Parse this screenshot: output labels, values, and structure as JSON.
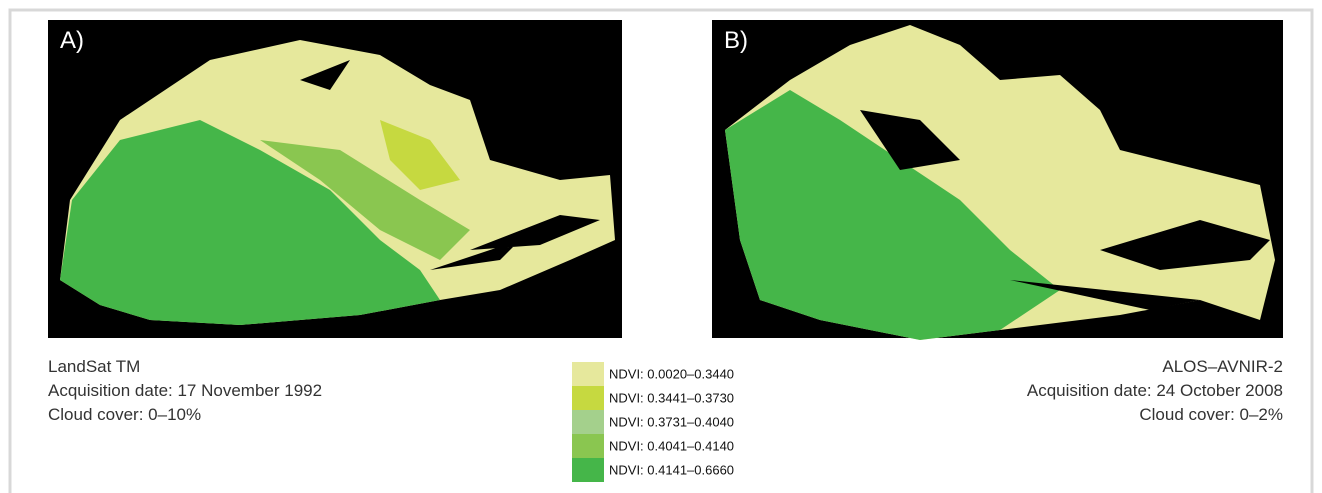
{
  "panels": [
    {
      "label": "A)",
      "caption": [
        "LandSat TM",
        "Acquisition date: 17 November 1992",
        "Cloud cover: 0–10%"
      ]
    },
    {
      "label": "B)",
      "caption": [
        "ALOS–AVNIR-2",
        "Acquisition date: 24 October 2008",
        "Cloud cover: 0–2%"
      ]
    }
  ],
  "legend": [
    {
      "label": "NDVI: 0.0020–0.3440",
      "color": "#e6e89c"
    },
    {
      "label": "NDVI: 0.3441–0.3730",
      "color": "#c6d940"
    },
    {
      "label": "NDVI: 0.3731–0.4040",
      "color": "#a4d08c"
    },
    {
      "label": "NDVI: 0.4041–0.4140",
      "color": "#8ac650"
    },
    {
      "label": "NDVI: 0.4141–0.6660",
      "color": "#45b649"
    }
  ]
}
